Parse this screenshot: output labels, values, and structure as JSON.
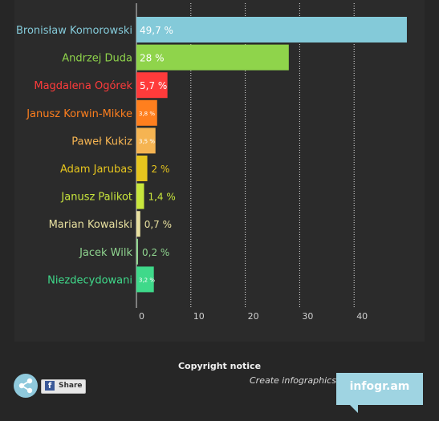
{
  "chart_data": {
    "type": "bar",
    "orientation": "horizontal",
    "categories": [
      "Bronisław Komorowski",
      "Andrzej Duda",
      "Magdalena Ogórek",
      "Janusz Korwin-Mikke",
      "Paweł Kukiz",
      "Adam Jarubas",
      "Janusz Palikot",
      "Marian Kowalski",
      "Jacek Wilk",
      "Niezdecydowani"
    ],
    "values": [
      49.7,
      28,
      5.7,
      3.8,
      3.5,
      2,
      1.4,
      0.7,
      0.2,
      3.2
    ],
    "value_labels": [
      "49,7 %",
      "28 %",
      "5,7 %",
      "3,8 %",
      "3,5 %",
      "2 %",
      "1,4 %",
      "0,7 %",
      "0,2 %",
      "3,2 %"
    ],
    "colors": [
      "#84cad9",
      "#8fd44b",
      "#ff3b3b",
      "#ff7f1e",
      "#f5b452",
      "#e6c51e",
      "#c8e63c",
      "#e8e0a0",
      "#8fd48f",
      "#3fd98a"
    ],
    "x_ticks": [
      "0",
      "10",
      "20",
      "30",
      "40"
    ],
    "xlim": [
      0,
      50
    ],
    "grid": true
  },
  "footer": {
    "copyright": "Copyright notice",
    "create_text": "Create infographics",
    "brand": "infogr.am"
  },
  "share": {
    "label": "Share",
    "fb_glyph": "f",
    "share_icon": "share-icon"
  }
}
